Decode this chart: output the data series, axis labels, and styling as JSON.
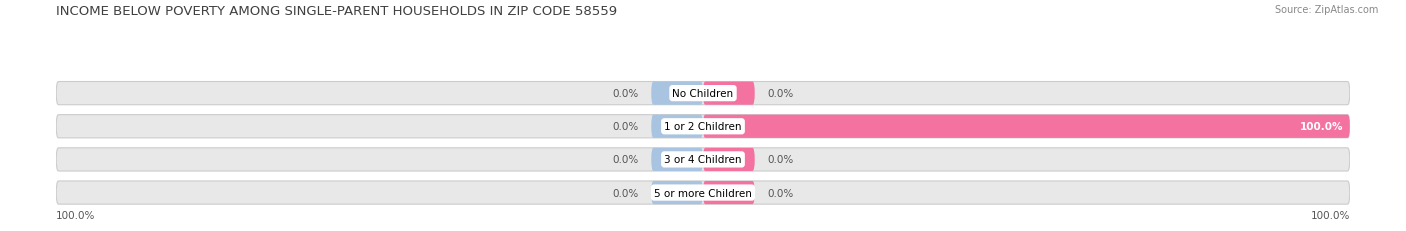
{
  "title": "INCOME BELOW POVERTY AMONG SINGLE-PARENT HOUSEHOLDS IN ZIP CODE 58559",
  "source": "Source: ZipAtlas.com",
  "categories": [
    "No Children",
    "1 or 2 Children",
    "3 or 4 Children",
    "5 or more Children"
  ],
  "single_father": [
    0.0,
    0.0,
    0.0,
    0.0
  ],
  "single_mother": [
    0.0,
    100.0,
    0.0,
    0.0
  ],
  "father_color": "#a8c4e0",
  "mother_color": "#f472a0",
  "bar_bg_color": "#e8e8e8",
  "bar_outline_color": "#cccccc",
  "title_fontsize": 9.5,
  "source_fontsize": 7.0,
  "label_fontsize": 7.5,
  "category_fontsize": 7.5,
  "legend_fontsize": 8.0,
  "xlim": 100,
  "bar_height": 0.7,
  "figsize": [
    14.06,
    2.32
  ],
  "dpi": 100
}
